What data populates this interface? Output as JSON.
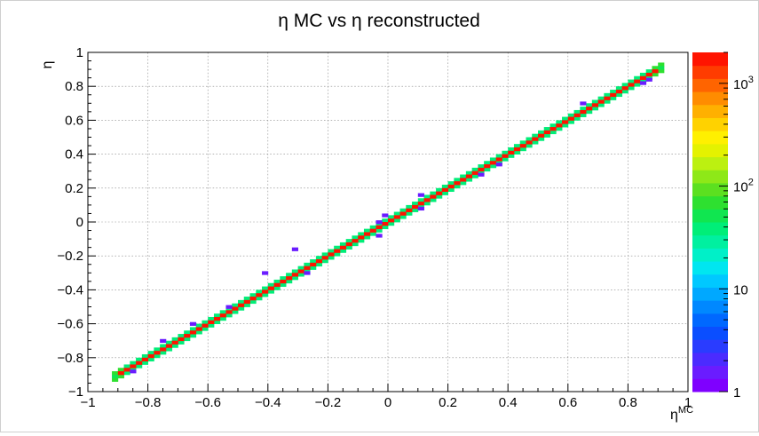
{
  "chart_data": {
    "type": "heatmap",
    "title": "η MC vs η reconstructed",
    "xlabel": "η",
    "xlabel_sup": "MC",
    "ylabel": "η",
    "xlim": [
      -1,
      1
    ],
    "ylim": [
      -1,
      1
    ],
    "x_ticks": [
      "−1",
      "−0.8",
      "−0.6",
      "−0.4",
      "−0.2",
      "0",
      "0.2",
      "0.4",
      "0.6",
      "0.8",
      "1"
    ],
    "x_tick_values": [
      -1,
      -0.8,
      -0.6,
      -0.4,
      -0.2,
      0,
      0.2,
      0.4,
      0.6,
      0.8,
      1
    ],
    "y_ticks": [
      "−1",
      "−0.8",
      "−0.6",
      "−0.4",
      "−0.2",
      "0",
      "0.2",
      "0.4",
      "0.6",
      "0.8",
      "1"
    ],
    "y_tick_values": [
      -1,
      -0.8,
      -0.6,
      -0.4,
      -0.2,
      0,
      0.2,
      0.4,
      0.6,
      0.8,
      1
    ],
    "grid": true,
    "bin_width": 0.02,
    "diagonal_range": [
      -0.92,
      0.92
    ],
    "z_scale": "log",
    "z_range": [
      1,
      2000
    ],
    "z_ticks": [
      {
        "value": 1000,
        "base": "10",
        "exp": "3"
      },
      {
        "value": 100,
        "base": "10",
        "exp": "2"
      },
      {
        "value": 10,
        "base": "10",
        "exp": ""
      },
      {
        "value": 1,
        "base": "1",
        "exp": ""
      }
    ],
    "palette": [
      "#7f00ff",
      "#6a1cff",
      "#4b2bff",
      "#2a3cff",
      "#0a4eff",
      "#0068ff",
      "#0088ff",
      "#00a8ff",
      "#00c8ff",
      "#00e6f0",
      "#00f0c8",
      "#00f0a0",
      "#00ee78",
      "#10e650",
      "#2ee030",
      "#5ce020",
      "#8ee818",
      "#bcf010",
      "#e4f200",
      "#fff000",
      "#ffd200",
      "#ffb000",
      "#ff8c00",
      "#ff6400",
      "#ff3c00",
      "#ff1400"
    ],
    "outliers": [
      {
        "x": -0.86,
        "y": -0.89
      },
      {
        "x": -0.76,
        "y": -0.71
      },
      {
        "x": -0.66,
        "y": -0.61
      },
      {
        "x": -0.54,
        "y": -0.51
      },
      {
        "x": -0.42,
        "y": -0.31
      },
      {
        "x": -0.32,
        "y": -0.17
      },
      {
        "x": -0.28,
        "y": -0.31
      },
      {
        "x": -0.04,
        "y": -0.01
      },
      {
        "x": -0.04,
        "y": -0.09
      },
      {
        "x": -0.02,
        "y": 0.03
      },
      {
        "x": 0.1,
        "y": 0.15
      },
      {
        "x": 0.1,
        "y": 0.07
      },
      {
        "x": 0.3,
        "y": 0.27
      },
      {
        "x": 0.36,
        "y": 0.33
      },
      {
        "x": 0.64,
        "y": 0.69
      },
      {
        "x": 0.84,
        "y": 0.81
      },
      {
        "x": 0.86,
        "y": 0.83
      }
    ]
  }
}
